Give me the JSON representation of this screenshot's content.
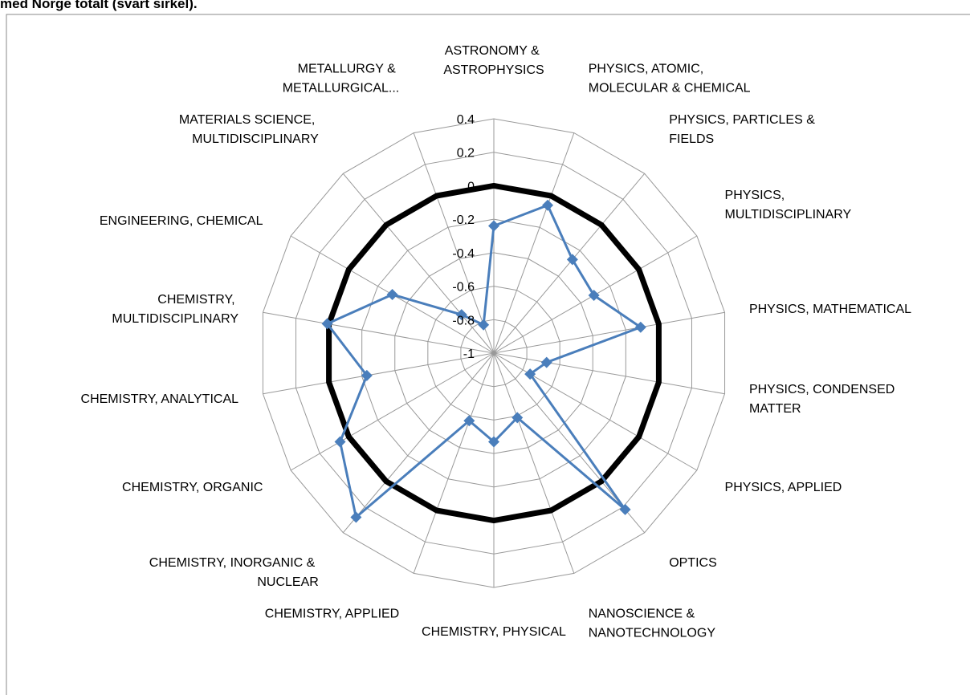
{
  "chart_data": {
    "type": "radar",
    "title": "med Norge totalt (svart sirkel).",
    "categories": [
      "ASTRONOMY & ASTROPHYSICS",
      "PHYSICS, ATOMIC, MOLECULAR & CHEMICAL",
      "PHYSICS, PARTICLES & FIELDS",
      "PHYSICS, MULTIDISCIPLINARY",
      "PHYSICS, MATHEMATICAL",
      "PHYSICS, CONDENSED MATTER",
      "PHYSICS, APPLIED",
      "OPTICS",
      "NANOSCIENCE & NANOTECHNOLOGY",
      "CHEMISTRY, PHYSICAL",
      "CHEMISTRY, APPLIED",
      "CHEMISTRY, INORGANIC & NUCLEAR",
      "CHEMISTRY, ORGANIC",
      "CHEMISTRY, ANALYTICAL",
      "CHEMISTRY, MULTIDISCIPLINARY",
      "ENGINEERING, CHEMICAL",
      "MATERIALS SCIENCE, MULTIDISCIPLINARY",
      "METALLURGY & METALLURGICAL..."
    ],
    "series": [
      {
        "color": "#4a7ebb",
        "marker": "diamond",
        "values": [
          -0.24,
          -0.06,
          -0.27,
          -0.31,
          -0.11,
          -0.68,
          -0.75,
          0.22,
          -0.59,
          -0.47,
          -0.57,
          0.28,
          0.06,
          -0.23,
          0.01,
          -0.3,
          -0.7,
          -0.82
        ]
      },
      {
        "color": "#000000",
        "values": [
          0,
          0,
          0,
          0,
          0,
          0,
          0,
          0,
          0,
          0,
          0,
          0,
          0,
          0,
          0,
          0,
          0,
          0
        ]
      }
    ],
    "ylim": [
      -1,
      0.4
    ],
    "yticks": [
      -1,
      -0.8,
      -0.6,
      -0.4,
      -0.2,
      0,
      0.2,
      0.4
    ],
    "grid": true
  }
}
